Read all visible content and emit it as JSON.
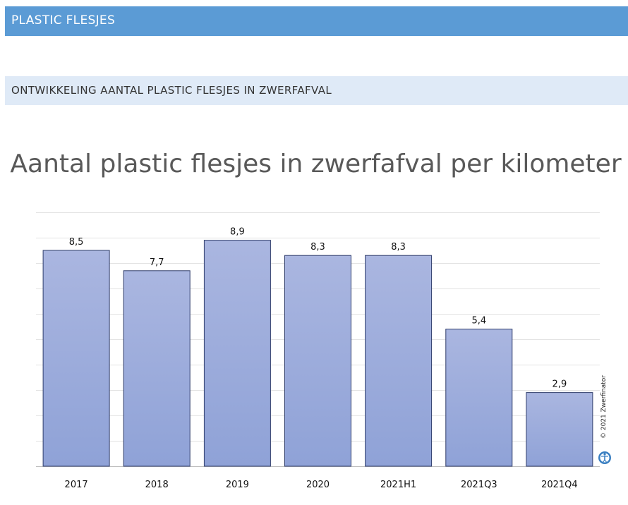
{
  "header": {
    "section_title": "PLASTIC FLESJES",
    "subsection_title": "ONTWIKKELING AANTAL PLASTIC FLESJES IN ZWERFAFVAL"
  },
  "colors": {
    "header_band": "#5b9bd5",
    "subheader_band": "#dfeaf7",
    "bar_fill_top": "#aab6e0",
    "bar_fill_bottom": "#8fa2d7",
    "bar_stroke": "#2f3d6b"
  },
  "chart_data": {
    "type": "bar",
    "title": "Aantal plastic flesjes in zwerfafval per kilometer",
    "categories": [
      "2017",
      "2018",
      "2019",
      "2020",
      "2021H1",
      "2021Q3",
      "2021Q4"
    ],
    "values": [
      8.5,
      7.7,
      8.9,
      8.3,
      8.3,
      5.4,
      2.9
    ],
    "value_labels": [
      "8,5",
      "7,7",
      "8,9",
      "8,3",
      "8,3",
      "5,4",
      "2,9"
    ],
    "xlabel": "",
    "ylabel": "",
    "ylim": [
      0,
      10
    ],
    "y_axis_labels_visible": false,
    "grid": true,
    "legend": "none"
  },
  "credit": {
    "text": "© 2021 Zwerfinator",
    "logo_icon": "zwerfinator-logo-icon"
  }
}
